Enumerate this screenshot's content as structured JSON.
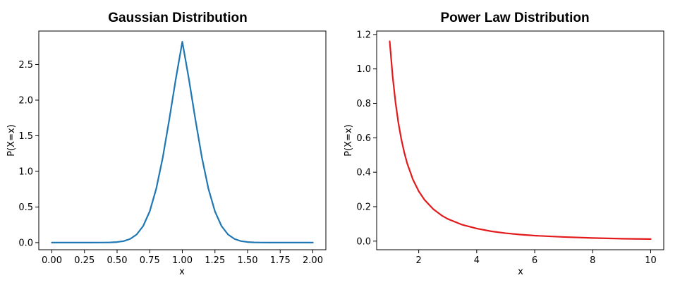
{
  "chart_data": [
    {
      "type": "line",
      "title": "Gaussian Distribution",
      "xlabel": "x",
      "ylabel": "P(X=x)",
      "xlim": [
        -0.1,
        2.1
      ],
      "ylim": [
        -0.1,
        2.97
      ],
      "xticks": [
        0.0,
        0.25,
        0.5,
        0.75,
        1.0,
        1.25,
        1.5,
        1.75,
        2.0
      ],
      "xtick_labels": [
        "0.00",
        "0.25",
        "0.50",
        "0.75",
        "1.00",
        "1.25",
        "1.50",
        "1.75",
        "2.00"
      ],
      "yticks": [
        0.0,
        0.5,
        1.0,
        1.5,
        2.0,
        2.5
      ],
      "ytick_labels": [
        "0.0",
        "0.5",
        "1.0",
        "1.5",
        "2.0",
        "2.5"
      ],
      "grid": false,
      "series": [
        {
          "color": "#1f77b4",
          "x": [
            0.0,
            0.1,
            0.2,
            0.3,
            0.4,
            0.45,
            0.5,
            0.55,
            0.6,
            0.65,
            0.7,
            0.75,
            0.8,
            0.85,
            0.9,
            0.95,
            1.0,
            1.05,
            1.1,
            1.15,
            1.2,
            1.25,
            1.3,
            1.35,
            1.4,
            1.45,
            1.5,
            1.55,
            1.6,
            1.7,
            1.8,
            1.9,
            2.0
          ],
          "y": [
            0.0,
            0.0,
            0.0,
            0.0,
            0.001,
            0.003,
            0.008,
            0.021,
            0.051,
            0.114,
            0.233,
            0.438,
            0.756,
            1.194,
            1.729,
            2.298,
            2.82,
            2.298,
            1.729,
            1.194,
            0.756,
            0.438,
            0.233,
            0.114,
            0.051,
            0.021,
            0.008,
            0.003,
            0.001,
            0.0,
            0.0,
            0.0,
            0.0
          ]
        }
      ]
    },
    {
      "type": "line",
      "title": "Power Law Distribution",
      "xlabel": "x",
      "ylabel": "P(X=x)",
      "xlim": [
        0.55,
        10.45
      ],
      "ylim": [
        -0.05,
        1.22
      ],
      "xticks": [
        2,
        4,
        6,
        8,
        10
      ],
      "xtick_labels": [
        "2",
        "4",
        "6",
        "8",
        "10"
      ],
      "yticks": [
        0.0,
        0.2,
        0.4,
        0.6,
        0.8,
        1.0,
        1.2
      ],
      "ytick_labels": [
        "0.0",
        "0.2",
        "0.4",
        "0.6",
        "0.8",
        "1.0",
        "1.2"
      ],
      "grid": false,
      "series": [
        {
          "color": "#e31a1c",
          "x": [
            1.0,
            1.1,
            1.2,
            1.3,
            1.4,
            1.5,
            1.6,
            1.8,
            2.0,
            2.2,
            2.5,
            2.8,
            3.0,
            3.5,
            4.0,
            4.5,
            5.0,
            5.5,
            6.0,
            7.0,
            8.0,
            9.0,
            10.0
          ],
          "y": [
            1.16,
            0.959,
            0.806,
            0.686,
            0.592,
            0.516,
            0.453,
            0.358,
            0.29,
            0.24,
            0.186,
            0.148,
            0.129,
            0.095,
            0.073,
            0.057,
            0.046,
            0.038,
            0.032,
            0.024,
            0.018,
            0.014,
            0.012
          ]
        }
      ]
    }
  ]
}
